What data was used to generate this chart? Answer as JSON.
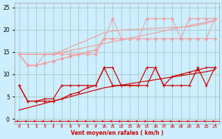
{
  "bg_color": "#cceeff",
  "grid_color": "#aacccc",
  "xlabel": "Vent moyen/en rafales ( km/h )",
  "x": [
    0,
    1,
    2,
    3,
    4,
    5,
    6,
    7,
    8,
    9,
    10,
    11,
    12,
    13,
    14,
    15,
    16,
    17,
    18,
    19,
    20,
    21,
    22,
    23
  ],
  "light_trend1": [
    14.5,
    14.5,
    14.5,
    14.5,
    14.5,
    14.9,
    15.3,
    15.7,
    16.1,
    16.5,
    16.9,
    17.3,
    17.7,
    18.1,
    18.5,
    18.9,
    19.3,
    19.7,
    20.1,
    20.5,
    20.9,
    21.3,
    21.7,
    22.1
  ],
  "light_trend2": [
    14.5,
    14.5,
    14.5,
    14.5,
    14.5,
    15.3,
    16.1,
    16.9,
    17.7,
    18.5,
    19.3,
    19.7,
    19.9,
    20.0,
    20.1,
    20.2,
    20.3,
    20.4,
    20.5,
    20.6,
    20.7,
    21.0,
    21.4,
    22.1
  ],
  "light_line1": [
    14.5,
    12.0,
    12.0,
    14.5,
    14.5,
    14.5,
    14.5,
    14.5,
    14.5,
    14.5,
    18.0,
    22.5,
    18.0,
    18.0,
    18.0,
    22.5,
    22.5,
    22.5,
    22.5,
    18.0,
    22.5,
    22.5,
    22.5,
    22.5
  ],
  "light_line2": [
    14.5,
    12.0,
    12.0,
    12.5,
    13.0,
    13.5,
    14.0,
    14.5,
    15.0,
    15.5,
    18.0,
    18.0,
    18.0,
    18.0,
    18.0,
    18.0,
    18.0,
    18.0,
    18.0,
    18.0,
    18.0,
    18.0,
    18.0,
    22.5
  ],
  "light_line3": [
    14.5,
    12.0,
    12.0,
    12.5,
    13.0,
    13.5,
    14.0,
    14.5,
    15.0,
    15.5,
    18.0,
    18.0,
    18.0,
    18.0,
    18.0,
    18.0,
    18.0,
    18.0,
    18.0,
    18.0,
    18.0,
    18.0,
    18.0,
    18.0
  ],
  "dark_line1": [
    7.5,
    4.0,
    4.0,
    4.5,
    4.5,
    7.5,
    7.5,
    7.5,
    7.5,
    7.5,
    11.5,
    11.5,
    7.5,
    7.5,
    7.5,
    11.5,
    11.5,
    7.5,
    7.5,
    7.5,
    7.5,
    11.5,
    7.5,
    11.5
  ],
  "dark_line2": [
    7.5,
    4.0,
    4.0,
    4.0,
    4.0,
    4.5,
    5.5,
    6.0,
    7.0,
    7.5,
    11.5,
    7.5,
    7.5,
    7.5,
    7.5,
    7.5,
    11.5,
    7.5,
    9.5,
    10.0,
    10.5,
    11.0,
    11.5,
    11.5
  ],
  "dark_trend": [
    2.0,
    2.5,
    3.0,
    3.5,
    4.0,
    4.5,
    5.0,
    5.5,
    6.0,
    6.5,
    7.0,
    7.3,
    7.6,
    7.9,
    8.2,
    8.5,
    8.8,
    9.1,
    9.4,
    9.7,
    10.0,
    10.3,
    10.6,
    11.0
  ],
  "red_color": "#cc0000",
  "light_color": "#f0a0a0"
}
